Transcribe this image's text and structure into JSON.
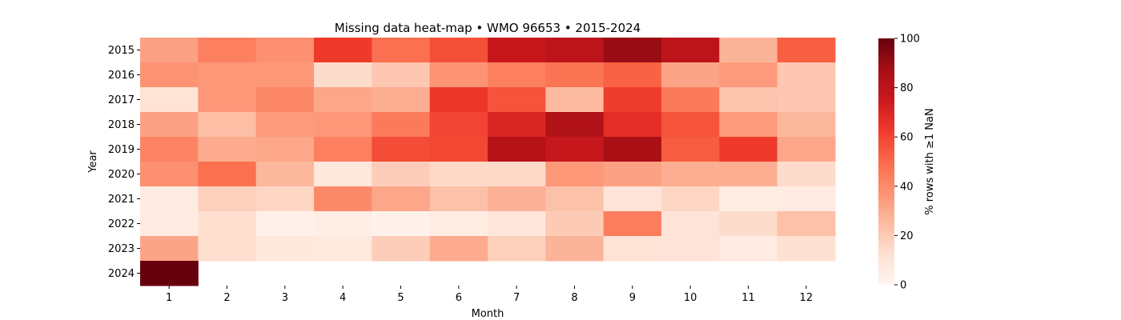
{
  "chart_data": {
    "type": "heatmap",
    "title": "Missing data heat-map • WMO 96653 • 2015-2024",
    "xlabel": "Month",
    "ylabel": "Year",
    "x": [
      "1",
      "2",
      "3",
      "4",
      "5",
      "6",
      "7",
      "8",
      "9",
      "10",
      "11",
      "12"
    ],
    "y": [
      "2015",
      "2016",
      "2017",
      "2018",
      "2019",
      "2020",
      "2021",
      "2022",
      "2023",
      "2024"
    ],
    "values": [
      [
        33,
        43,
        38,
        63,
        48,
        57,
        76,
        80,
        90,
        80,
        27,
        53
      ],
      [
        37,
        36,
        36,
        14,
        21,
        37,
        43,
        47,
        52,
        32,
        35,
        21
      ],
      [
        11,
        36,
        41,
        31,
        29,
        64,
        56,
        25,
        62,
        45,
        22,
        21
      ],
      [
        33,
        24,
        35,
        36,
        45,
        60,
        70,
        84,
        67,
        56,
        35,
        26
      ],
      [
        42,
        30,
        31,
        43,
        58,
        59,
        82,
        77,
        86,
        54,
        63,
        31
      ],
      [
        38,
        48,
        26,
        8,
        19,
        15,
        15,
        36,
        33,
        29,
        29,
        14
      ],
      [
        6,
        18,
        16,
        40,
        31,
        23,
        28,
        23,
        10,
        16,
        5,
        6
      ],
      [
        6,
        13,
        3,
        4,
        2,
        5,
        9,
        20,
        44,
        10,
        14,
        23
      ],
      [
        32,
        13,
        8,
        7,
        19,
        30,
        18,
        27,
        11,
        10,
        6,
        12
      ],
      [
        100,
        null,
        null,
        null,
        null,
        null,
        null,
        null,
        null,
        null,
        null,
        null
      ]
    ],
    "colormap": "Reds",
    "vmin": 0,
    "vmax": 100,
    "colorbar": {
      "label": "% rows with ≥1 NaN",
      "ticks": [
        "0",
        "20",
        "40",
        "60",
        "80",
        "100"
      ]
    }
  }
}
